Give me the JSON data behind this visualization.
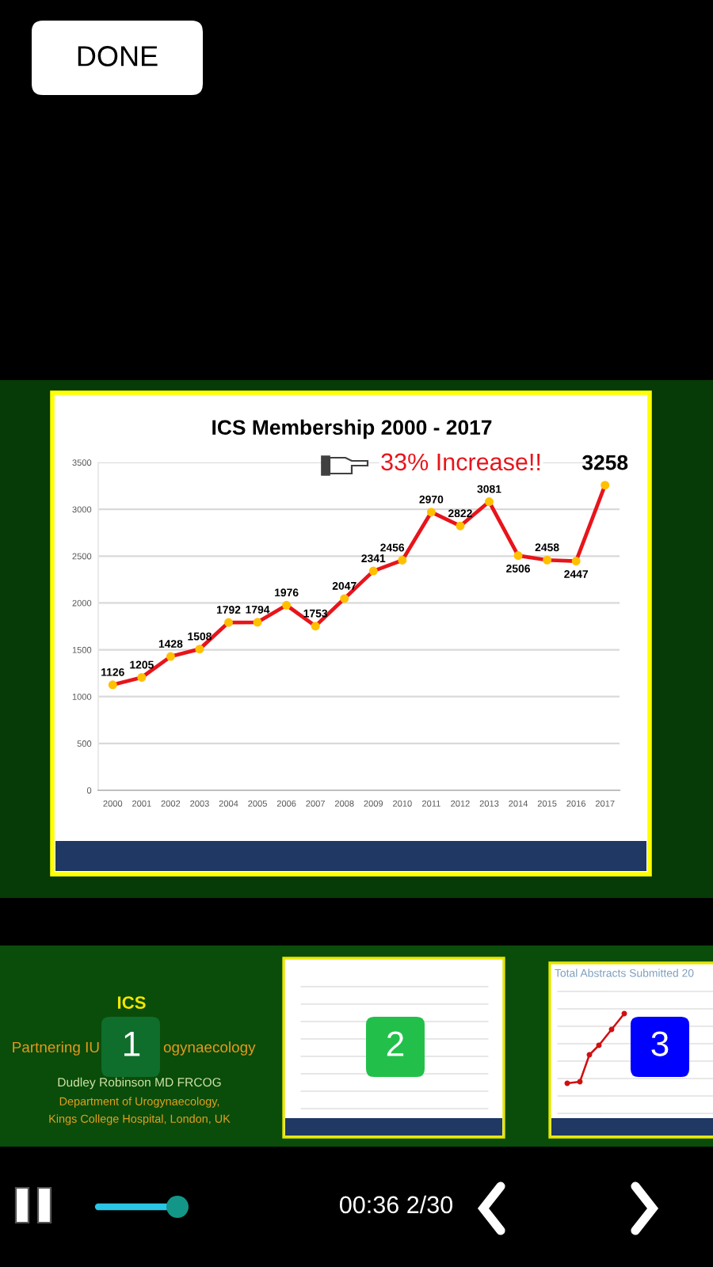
{
  "chart_data": {
    "type": "line",
    "title": "ICS Membership 2000 - 2017",
    "categories": [
      "2000",
      "2001",
      "2002",
      "2003",
      "2004",
      "2005",
      "2006",
      "2007",
      "2008",
      "2009",
      "2010",
      "2011",
      "2012",
      "2013",
      "2014",
      "2015",
      "2016",
      "2017"
    ],
    "series": [
      {
        "color": "#e8141b",
        "values": [
          1126,
          1205,
          1428,
          1508,
          1792,
          1794,
          1976,
          1753,
          2047,
          2341,
          2456,
          2970,
          2822,
          3081,
          2506,
          2458,
          2447,
          3258
        ]
      }
    ],
    "ylim": [
      0,
      3500
    ],
    "yticks": [
      0,
      500,
      1000,
      1500,
      2000,
      2500,
      3000,
      3500
    ],
    "grid": "y",
    "marker": "circle",
    "line_style": "solid",
    "data_labels": true,
    "annotations": [
      "33% Increase!!",
      "DONE",
      "ICS",
      "Partnering IU",
      "ogynaecology",
      "Dudley Robinson MD FRCOG",
      "Department of Urogynaecology,",
      "Kings College Hospital, London, UK",
      "1",
      "2",
      "Total Abstracts Submitted 20",
      "3",
      "00:36 2/30"
    ]
  }
}
